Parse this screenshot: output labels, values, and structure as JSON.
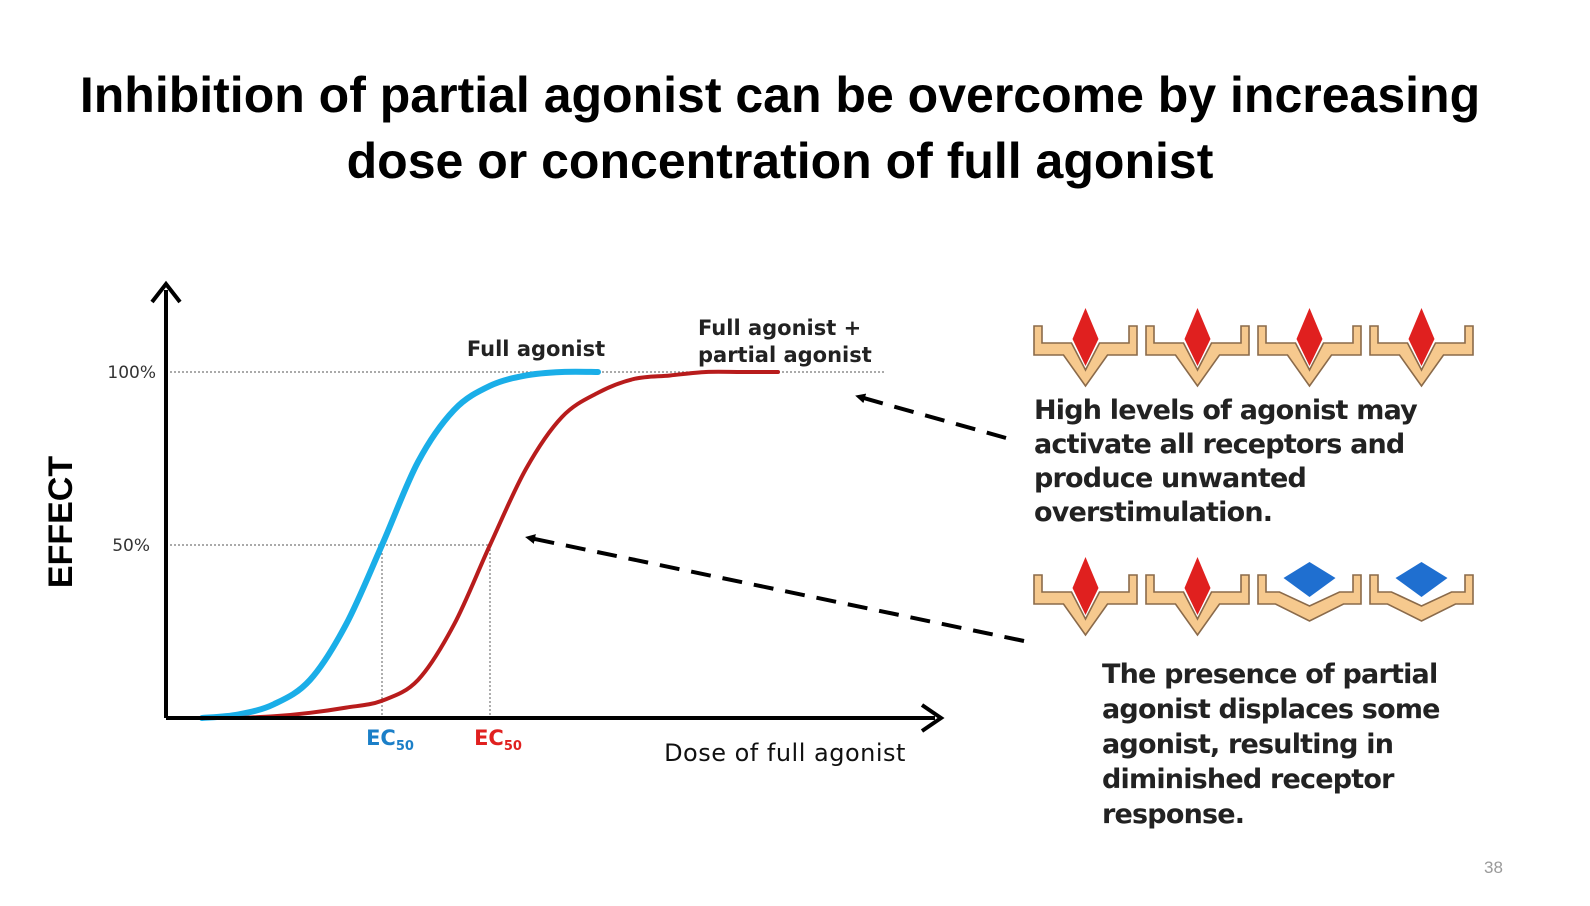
{
  "slide": {
    "title_line1": "Inhibition of partial agonist can be overcome by increasing",
    "title_line2": "dose or concentration of full agonist",
    "page_number": "38"
  },
  "chart_data": {
    "type": "line",
    "title": "",
    "xlabel": "Dose of full agonist",
    "ylabel": "EFFECT",
    "y_ticks": [
      {
        "value": 100,
        "label": "100%"
      },
      {
        "value": 50,
        "label": "50%"
      }
    ],
    "ylim": [
      0,
      105
    ],
    "xlim": [
      0,
      10
    ],
    "grid": false,
    "series": [
      {
        "name": "Full agonist",
        "color": "#1aaee8",
        "ec50": 3.0,
        "ec50_label": "EC50",
        "x": [
          0.5,
          1.0,
          1.5,
          2.0,
          2.5,
          3.0,
          3.5,
          4.0,
          4.5,
          5.0,
          5.5,
          6.0
        ],
        "values": [
          0,
          1,
          4,
          11,
          27,
          50,
          74,
          89,
          96,
          99,
          100,
          100
        ]
      },
      {
        "name": "Full agonist + partial agonist",
        "label_lines": [
          "Full agonist +",
          "partial agonist"
        ],
        "color": "#b81c1c",
        "ec50": 4.5,
        "ec50_label": "EC50",
        "x": [
          1.0,
          1.5,
          2.0,
          2.5,
          3.0,
          3.5,
          4.0,
          4.5,
          5.0,
          5.5,
          6.0,
          6.5,
          7.0,
          7.5,
          8.0,
          8.5
        ],
        "values": [
          0,
          0.5,
          1.5,
          3,
          5,
          11,
          27,
          50,
          72,
          87,
          94,
          98,
          99,
          100,
          100,
          100
        ]
      }
    ]
  },
  "receptors": {
    "top_row": [
      "full-agonist",
      "full-agonist",
      "full-agonist",
      "full-agonist"
    ],
    "bottom_row": [
      "full-agonist",
      "full-agonist",
      "partial-agonist",
      "partial-agonist"
    ],
    "colors": {
      "receptor": "#f6c98e",
      "receptor_edge": "#8a6a4a",
      "full_agonist": "#e0201f",
      "partial_agonist": "#1f6fd0"
    }
  },
  "annotations": {
    "high_levels": "High levels of agonist may activate all receptors and produce unwanted overstimulation.",
    "partial_presence": "The presence of partial agonist displaces some agonist, resulting in diminished receptor response."
  },
  "icons": [
    "y-axis-arrow-icon",
    "x-axis-arrow-icon",
    "dashed-arrow-icon",
    "receptor-icon",
    "red-diamond-agonist-icon",
    "blue-diamond-partial-agonist-icon"
  ]
}
